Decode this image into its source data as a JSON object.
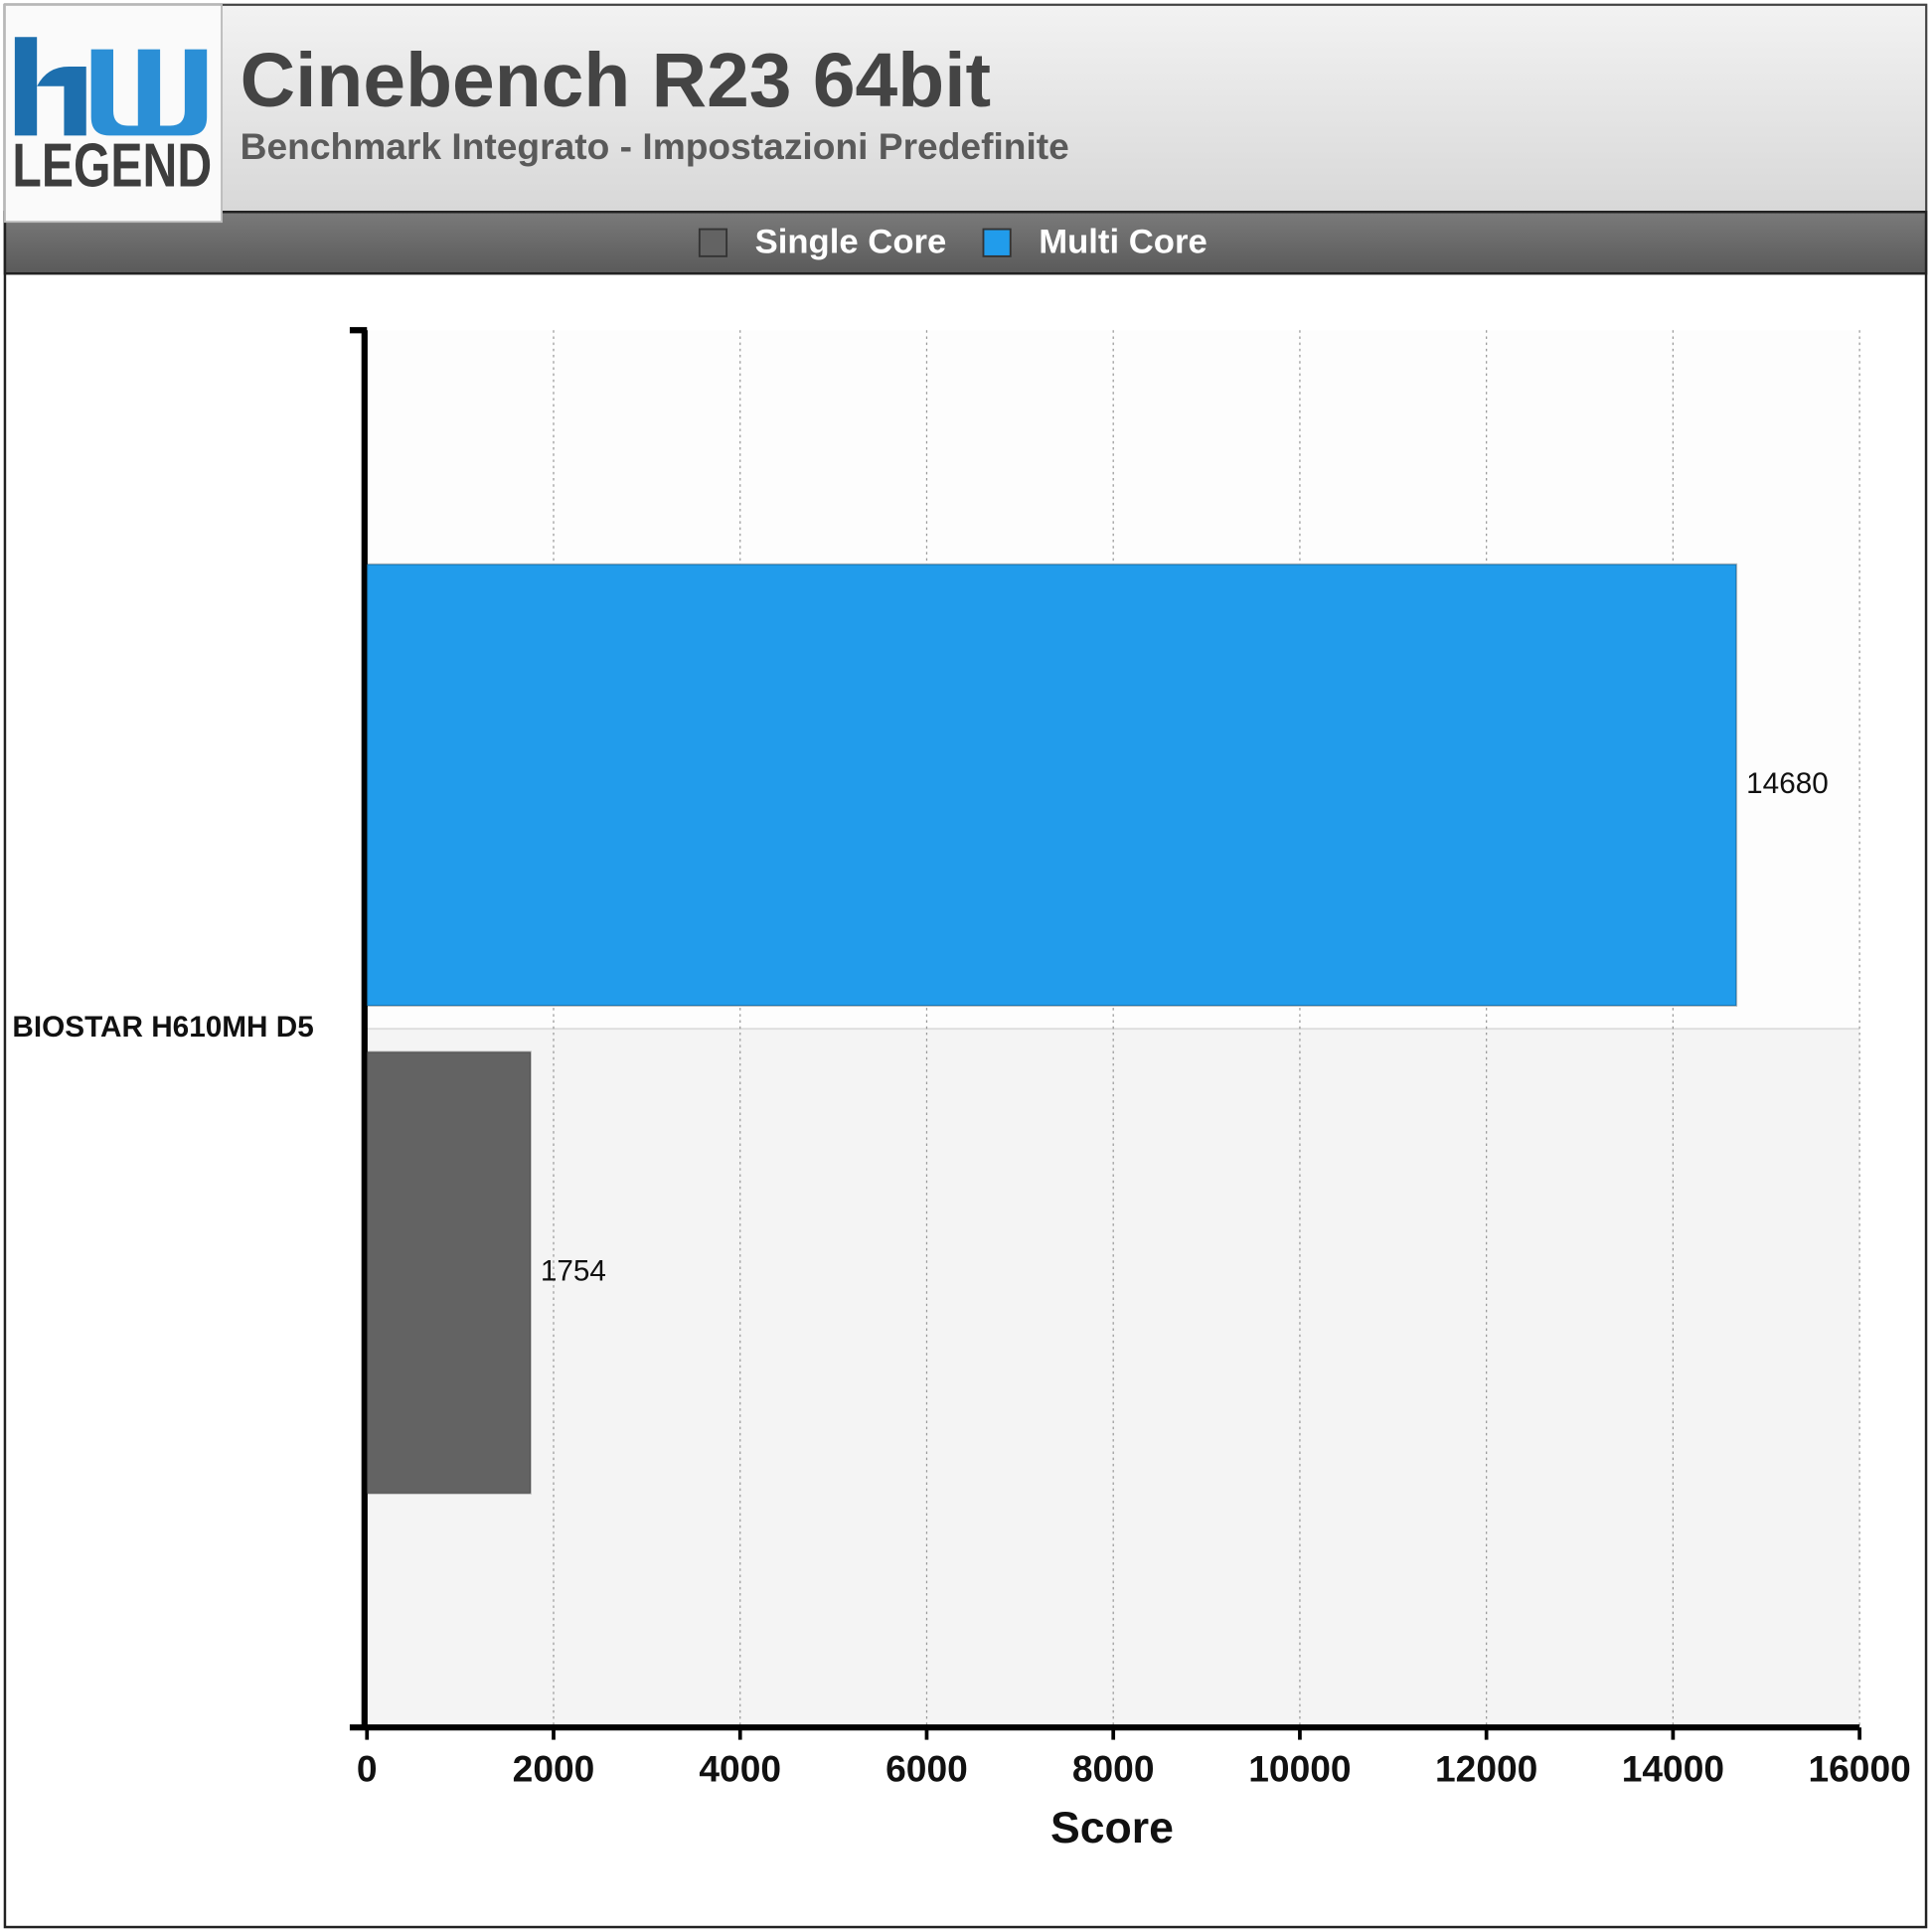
{
  "chart_data": {
    "type": "hbar",
    "title": "Cinebench R23 64bit",
    "subtitle": "Benchmark Integrato - Impostazioni Predefinite",
    "logo_text": "LEGEND",
    "categories": [
      "BIOSTAR H610MH D5"
    ],
    "series": [
      {
        "name": "Single Core",
        "color": "#636363",
        "values": [
          1754
        ]
      },
      {
        "name": "Multi Core",
        "color": "#219ceb",
        "values": [
          14680
        ]
      }
    ],
    "x_label": "Score",
    "xlim": [
      0,
      16000
    ],
    "xticks": [
      0,
      2000,
      4000,
      6000,
      8000,
      10000,
      12000,
      14000,
      16000
    ],
    "grid": true,
    "legend": "top"
  }
}
